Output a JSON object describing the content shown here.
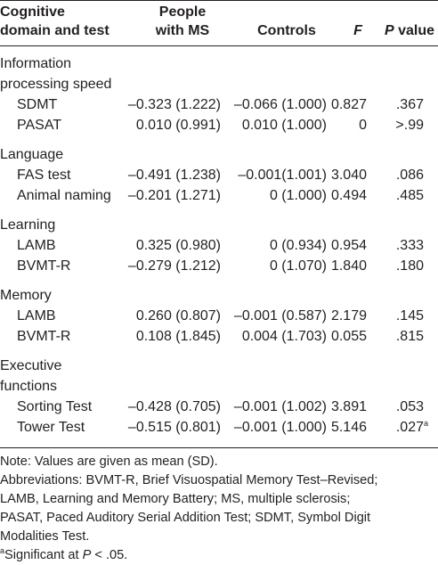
{
  "headers": {
    "domain_line1": "Cognitive",
    "domain_line2": "domain and test",
    "ms_line1": "People",
    "ms_line2": "with MS",
    "controls": "Controls",
    "f": "F",
    "p_italic": "P",
    "p_rest": " value"
  },
  "groups": [
    {
      "title_lines": [
        "Information",
        "processing speed"
      ],
      "rows": [
        {
          "test": "SDMT",
          "ms": "–0.323 (1.222)",
          "controls": "–0.066 (1.000)",
          "f": "0.827",
          "p": ".367",
          "sup": ""
        },
        {
          "test": "PASAT",
          "ms": "0.010 (0.991)",
          "controls": "0.010 (1.000)",
          "f": "0",
          "p": ">.99",
          "sup": ""
        }
      ]
    },
    {
      "title_lines": [
        "Language"
      ],
      "rows": [
        {
          "test": "FAS test",
          "ms": "–0.491 (1.238)",
          "controls": "–0.001(1.001)",
          "f": "3.040",
          "p": ".086",
          "sup": ""
        },
        {
          "test": "Animal naming",
          "ms": "–0.201 (1.271)",
          "controls": "0 (1.000)",
          "f": "0.494",
          "p": ".485",
          "sup": ""
        }
      ]
    },
    {
      "title_lines": [
        "Learning"
      ],
      "rows": [
        {
          "test": "LAMB",
          "ms": "0.325 (0.980)",
          "controls": "0 (0.934)",
          "f": "0.954",
          "p": ".333",
          "sup": ""
        },
        {
          "test": "BVMT-R",
          "ms": "–0.279 (1.212)",
          "controls": "0 (1.070)",
          "f": "1.840",
          "p": ".180",
          "sup": ""
        }
      ]
    },
    {
      "title_lines": [
        "Memory"
      ],
      "rows": [
        {
          "test": "LAMB",
          "ms": "0.260 (0.807)",
          "controls": "–0.001 (0.587)",
          "f": "2.179",
          "p": ".145",
          "sup": ""
        },
        {
          "test": "BVMT-R",
          "ms": "0.108 (1.845)",
          "controls": "0.004 (1.703)",
          "f": "0.055",
          "p": ".815",
          "sup": ""
        }
      ]
    },
    {
      "title_lines": [
        "Executive",
        "functions"
      ],
      "rows": [
        {
          "test": "Sorting Test",
          "ms": "–0.428 (0.705)",
          "controls": "–0.001 (1.002)",
          "f": "3.891",
          "p": ".053",
          "sup": ""
        },
        {
          "test": "Tower Test",
          "ms": "–0.515 (0.801)",
          "controls": "–0.001 (1.000)",
          "f": "5.146",
          "p": ".027",
          "sup": "a"
        }
      ]
    }
  ],
  "notes": {
    "line1": "Note: Values are given as mean (SD).",
    "abbr_lines": [
      "Abbreviations: BVMT-R, Brief Visuospatial Memory Test–Revised;",
      "LAMB, Learning and Memory Battery; MS, multiple sclerosis;",
      "PASAT, Paced Auditory Serial Addition Test; SDMT, Symbol Digit",
      "Modalities Test."
    ],
    "footnote_mark": "a",
    "footnote_pre": "Significant at ",
    "footnote_p": "P",
    "footnote_post": " < .05."
  }
}
